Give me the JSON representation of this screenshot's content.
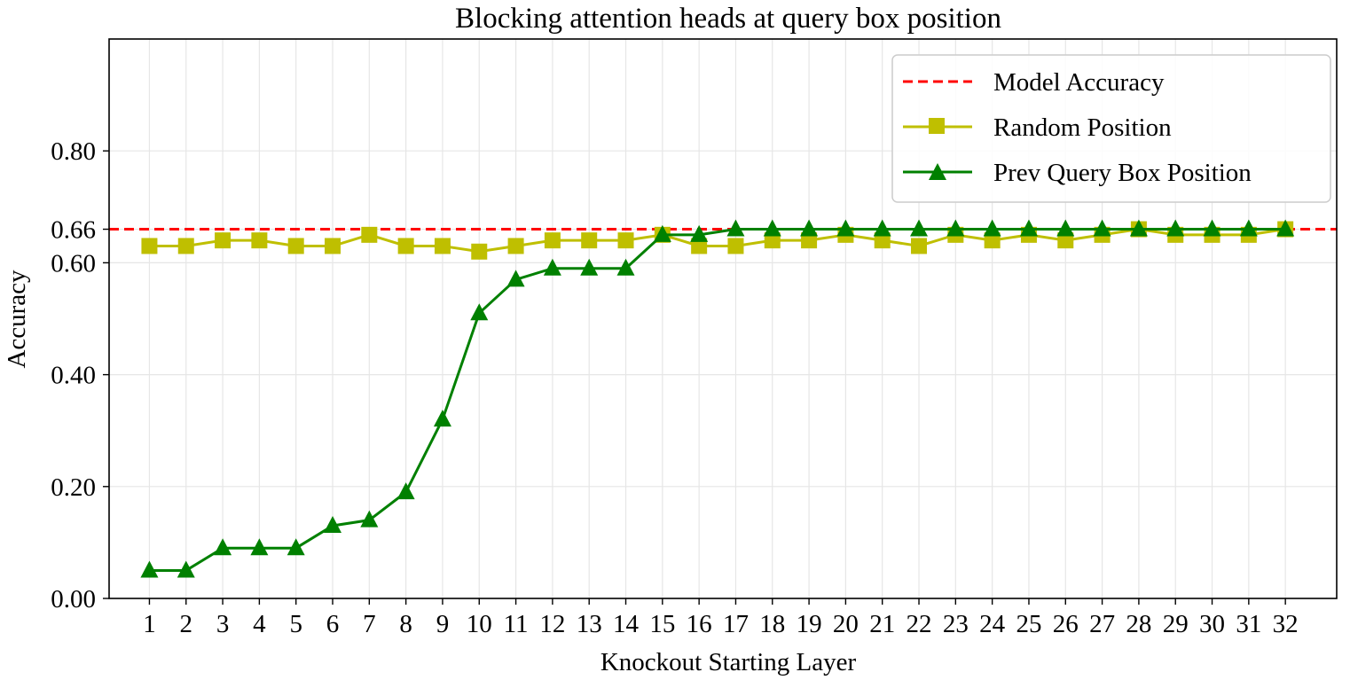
{
  "chart_data": {
    "type": "line",
    "title": "Blocking attention heads at query box position",
    "xlabel": "Knockout Starting Layer",
    "ylabel": "Accuracy",
    "x": [
      1,
      2,
      3,
      4,
      5,
      6,
      7,
      8,
      9,
      10,
      11,
      12,
      13,
      14,
      15,
      16,
      17,
      18,
      19,
      20,
      21,
      22,
      23,
      24,
      25,
      26,
      27,
      28,
      29,
      30,
      31,
      32
    ],
    "xlim": [
      -0.1,
      33.4
    ],
    "ylim": [
      0.0,
      1.0
    ],
    "yticks": [
      "0.00",
      "0.20",
      "0.40",
      "0.60",
      "0.66",
      "0.80"
    ],
    "grid": true,
    "legend_position": "top-right",
    "reference_line": {
      "name": "Model Accuracy",
      "value": 0.66,
      "color": "#ff0000",
      "style": "dashed"
    },
    "series": [
      {
        "name": "Random Position",
        "color": "#bfbf00",
        "marker": "square",
        "values": [
          0.63,
          0.63,
          0.64,
          0.64,
          0.63,
          0.63,
          0.65,
          0.63,
          0.63,
          0.62,
          0.63,
          0.64,
          0.64,
          0.64,
          0.65,
          0.63,
          0.63,
          0.64,
          0.64,
          0.65,
          0.64,
          0.63,
          0.65,
          0.64,
          0.65,
          0.64,
          0.65,
          0.66,
          0.65,
          0.65,
          0.65,
          0.66
        ]
      },
      {
        "name": "Prev Query Box Position",
        "color": "#008000",
        "marker": "triangle",
        "values": [
          0.05,
          0.05,
          0.09,
          0.09,
          0.09,
          0.13,
          0.14,
          0.19,
          0.32,
          0.51,
          0.57,
          0.59,
          0.59,
          0.59,
          0.65,
          0.65,
          0.66,
          0.66,
          0.66,
          0.66,
          0.66,
          0.66,
          0.66,
          0.66,
          0.66,
          0.66,
          0.66,
          0.66,
          0.66,
          0.66,
          0.66,
          0.66
        ]
      }
    ]
  }
}
